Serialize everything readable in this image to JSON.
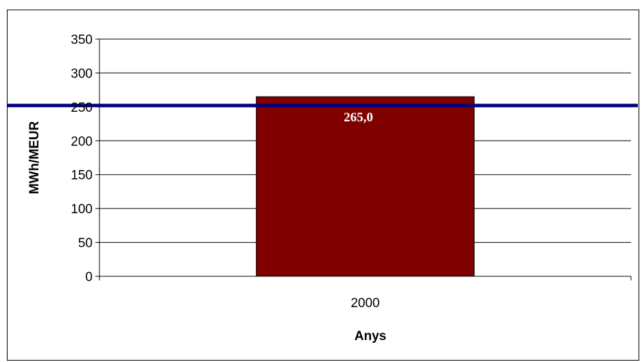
{
  "chart_data": {
    "type": "bar",
    "categories": [
      "2000"
    ],
    "values": [
      265.0
    ],
    "data_labels": [
      "265,0"
    ],
    "reference_line": {
      "value": 252
    },
    "title": "",
    "xlabel": "Anys",
    "ylabel": "MWh/MEUR",
    "ylim": [
      0,
      350
    ],
    "yticks": [
      0,
      50,
      100,
      150,
      200,
      250,
      300,
      350
    ],
    "grid": true,
    "legend": "none",
    "colors": {
      "bar": "#800000",
      "reference_line": "#000080",
      "grid": "#000000"
    }
  }
}
